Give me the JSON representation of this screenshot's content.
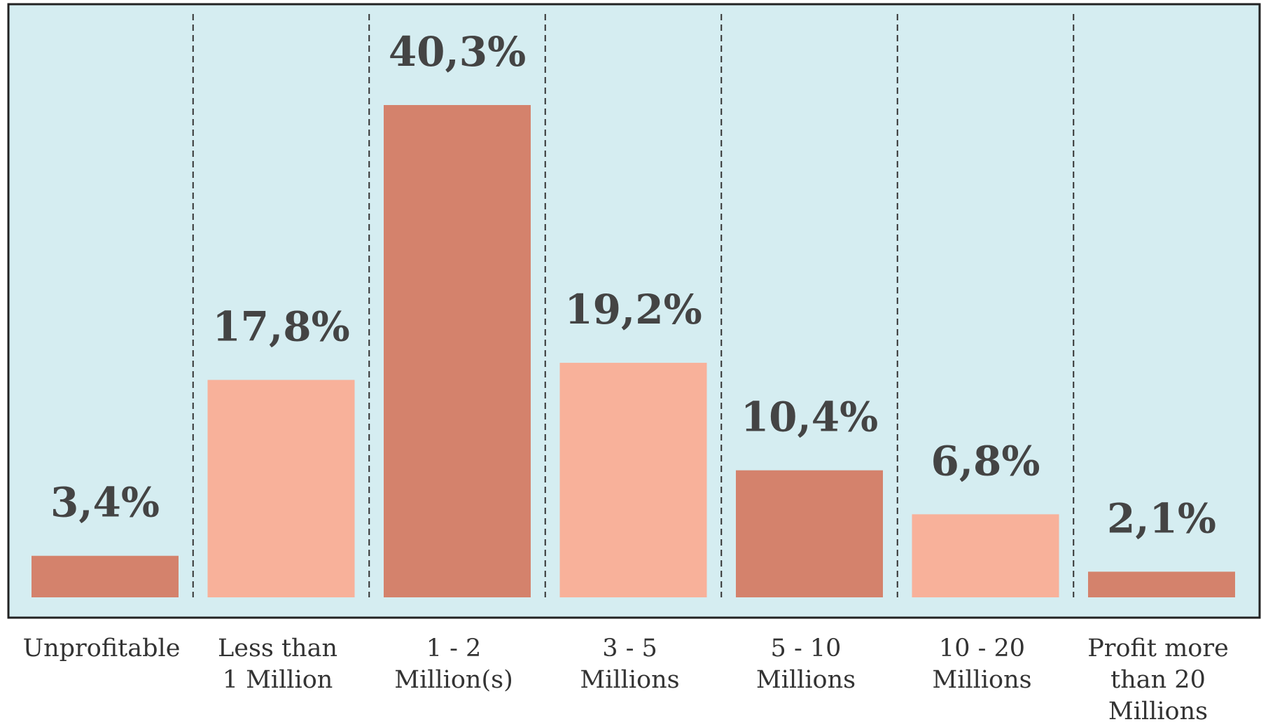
{
  "chart_data": {
    "type": "bar",
    "categories": [
      [
        "Unprofitable"
      ],
      [
        "Less than",
        "1 Million"
      ],
      [
        "1 - 2",
        "Million(s)"
      ],
      [
        "3 - 5",
        "Millions"
      ],
      [
        "5 - 10",
        "Millions"
      ],
      [
        "10 - 20",
        "Millions"
      ],
      [
        "Profit more",
        "than 20",
        "Millions"
      ]
    ],
    "values": [
      3.4,
      17.8,
      40.3,
      19.2,
      10.4,
      6.8,
      2.1
    ],
    "value_labels": [
      "3,4%",
      "17,8%",
      "40,3%",
      "19,2%",
      "10,4%",
      "6,8%",
      "2,1%"
    ],
    "ylim": [
      0,
      48.5
    ],
    "grid": "vertical dashed separators",
    "colors": {
      "background": "#d5edf1",
      "bar_dark": "#d4826c",
      "bar_light": "#f8b19a",
      "border": "#222222",
      "text": "#444444"
    },
    "bar_color_pattern": [
      "dark",
      "light",
      "dark",
      "light",
      "dark",
      "light",
      "dark"
    ]
  }
}
